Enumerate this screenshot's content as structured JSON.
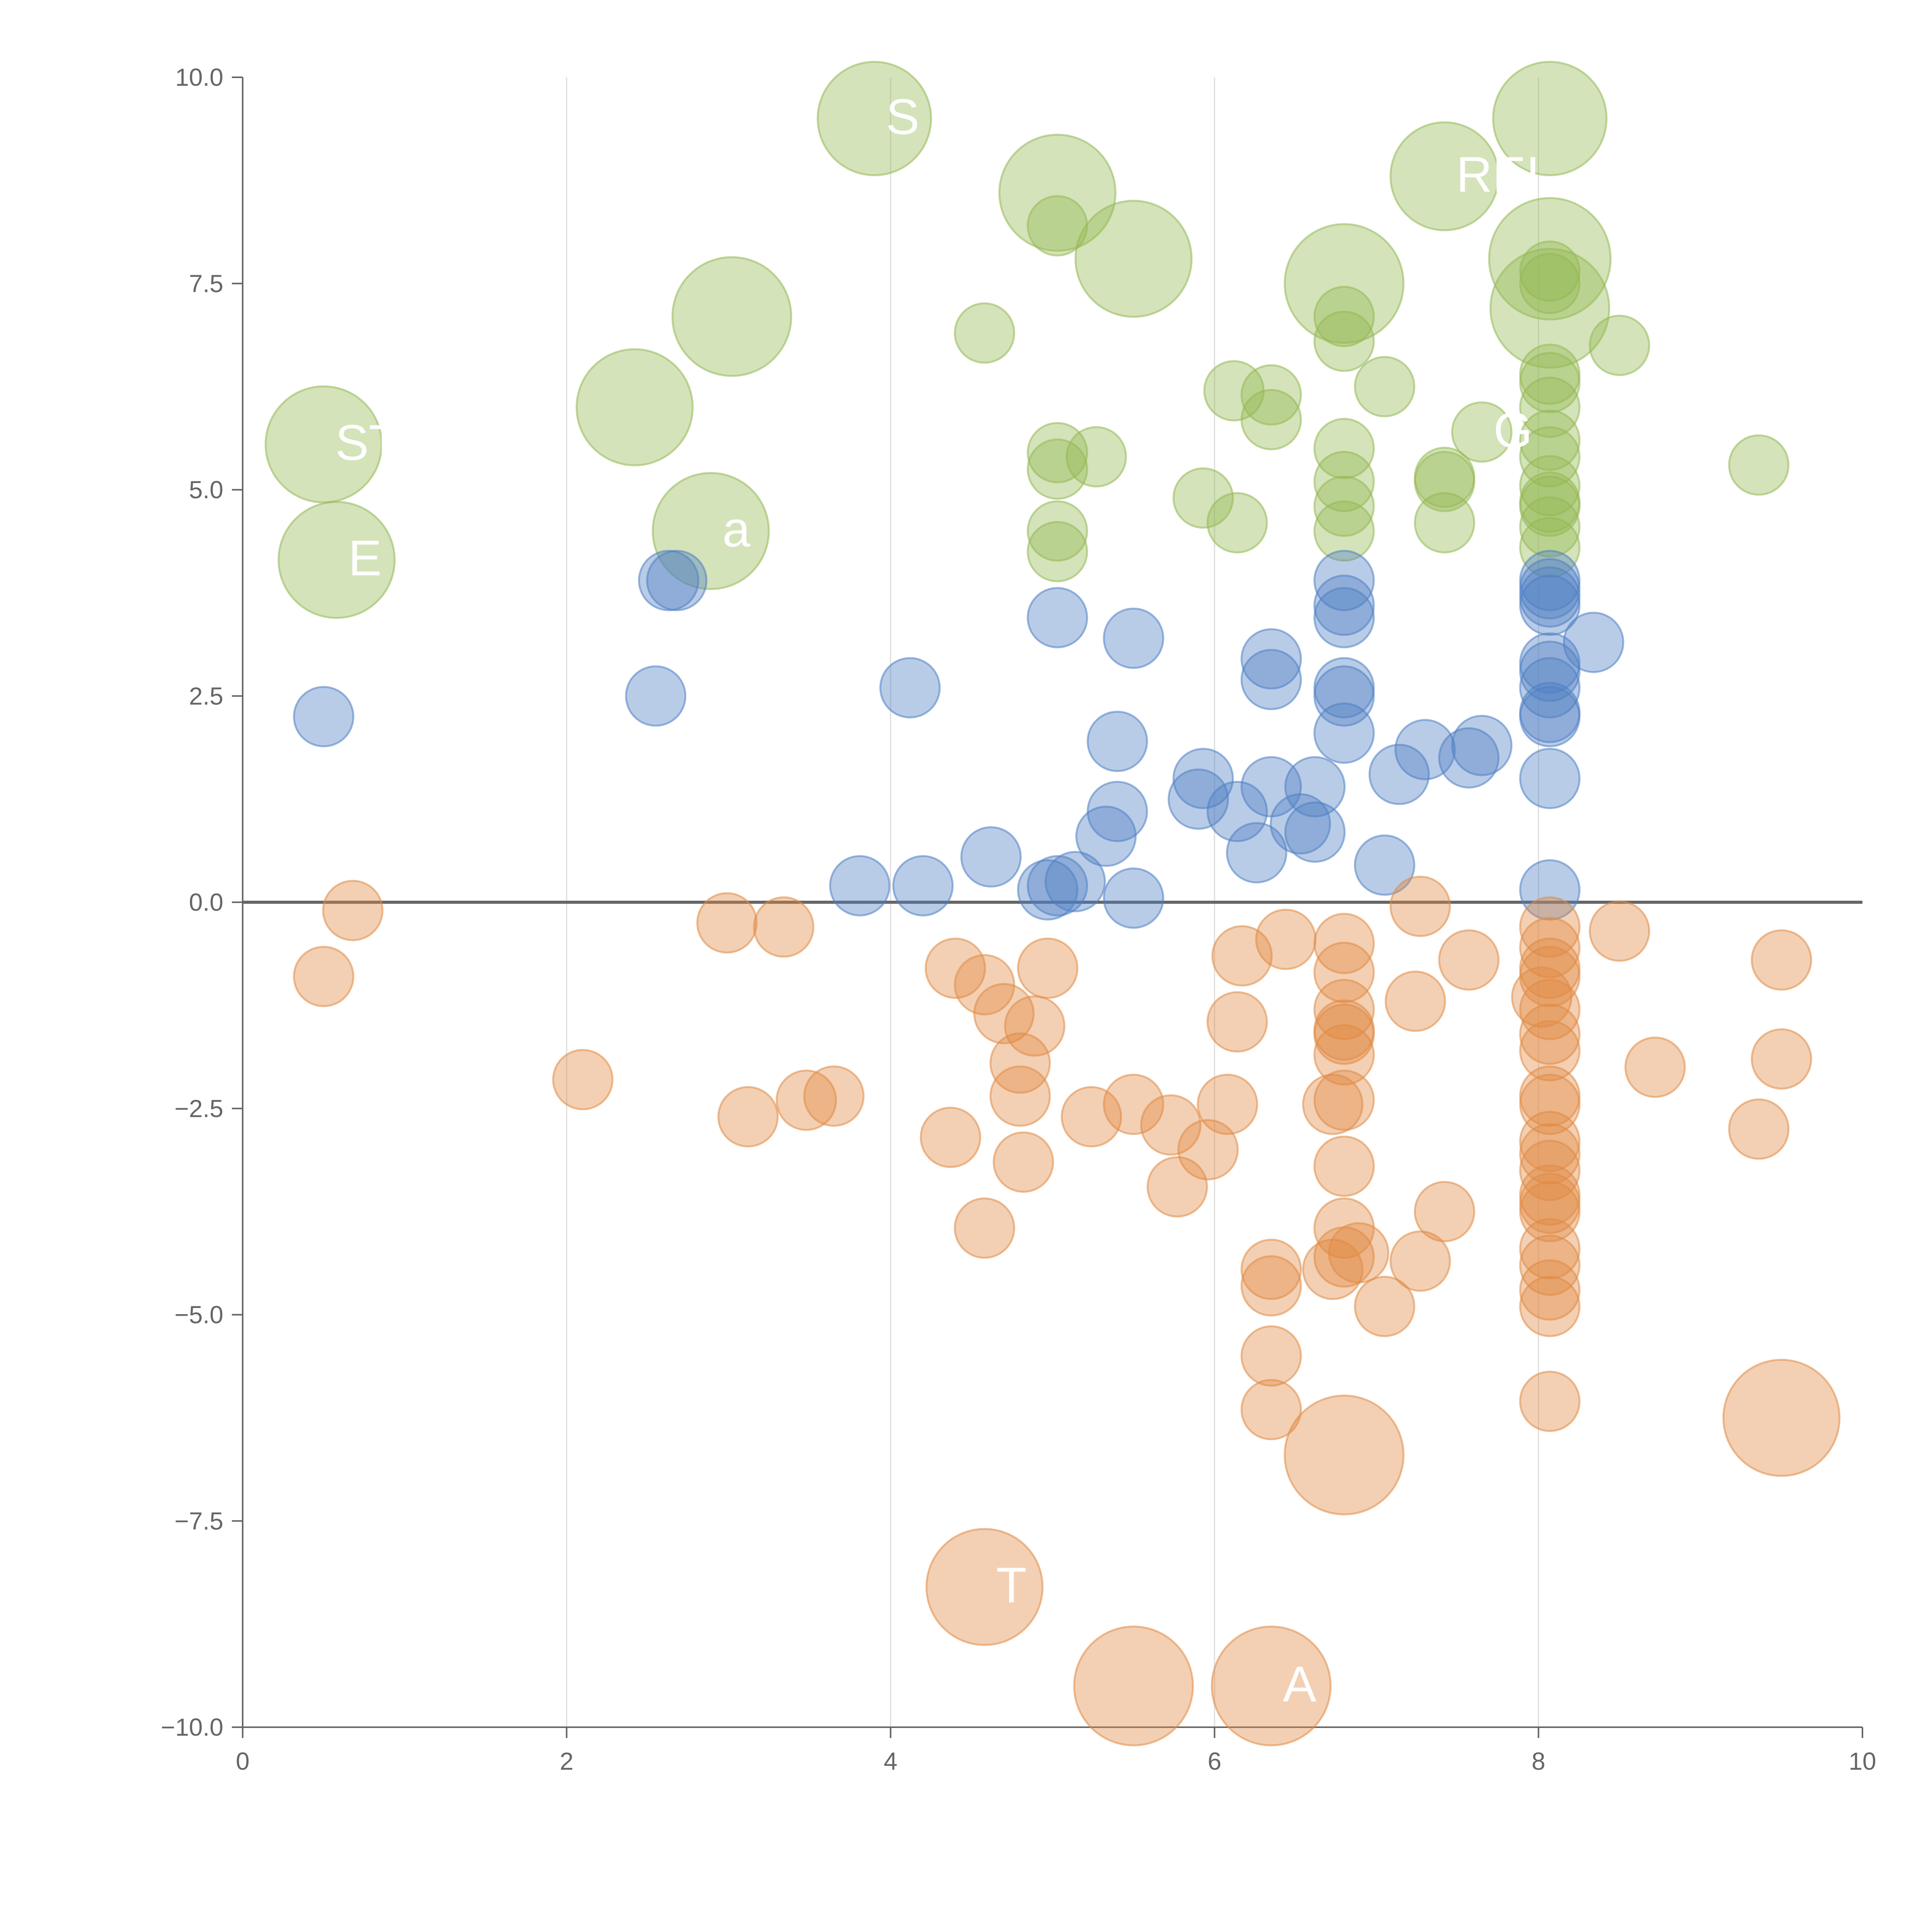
{
  "chart_data": {
    "type": "scatter",
    "subtype": "bubble",
    "title": "",
    "xlabel": "",
    "ylabel": "",
    "xlim": [
      0,
      10
    ],
    "ylim": [
      -10,
      10
    ],
    "grid": "vertical",
    "zero_line": true,
    "x_ticks": [
      0,
      2,
      4,
      6,
      8,
      10
    ],
    "x_tick_labels": [
      "0",
      "2",
      "4",
      "6",
      "8",
      "10"
    ],
    "y_ticks": [
      -10,
      -7.5,
      -5,
      -2.5,
      0,
      2.5,
      5,
      7.5,
      10
    ],
    "y_tick_labels": [
      "−10.0",
      "−7.5",
      "−5.0",
      "−2.5",
      "0.0",
      "2.5",
      "5.0",
      "7.5",
      "10.0"
    ],
    "colors": {
      "positive": "#93b853",
      "neutral": "#4f7fc4",
      "negative": "#e08a43",
      "axis": "#666666",
      "grid": "#dddddd"
    },
    "series": [
      {
        "name": "positive",
        "color": "#93b853",
        "points": [
          {
            "x": 3.9,
            "y": 9.5,
            "r": 4.2
          },
          {
            "x": 8.07,
            "y": 9.5,
            "r": 4.2
          },
          {
            "x": 5.03,
            "y": 8.6,
            "r": 4.3
          },
          {
            "x": 7.42,
            "y": 8.8,
            "r": 4.0
          },
          {
            "x": 5.5,
            "y": 7.8,
            "r": 4.3
          },
          {
            "x": 8.07,
            "y": 7.8,
            "r": 4.5
          },
          {
            "x": 6.8,
            "y": 7.5,
            "r": 4.4
          },
          {
            "x": 8.07,
            "y": 7.2,
            "r": 4.4
          },
          {
            "x": 3.02,
            "y": 7.1,
            "r": 4.4
          },
          {
            "x": 2.42,
            "y": 6.0,
            "r": 4.3
          },
          {
            "x": 0.5,
            "y": 5.55,
            "r": 4.3
          },
          {
            "x": 2.89,
            "y": 4.5,
            "r": 4.3
          },
          {
            "x": 0.58,
            "y": 4.15,
            "r": 4.3
          },
          {
            "x": 5.03,
            "y": 8.2,
            "r": 2.2
          },
          {
            "x": 4.58,
            "y": 6.9,
            "r": 2.2
          },
          {
            "x": 6.8,
            "y": 7.1,
            "r": 2.2
          },
          {
            "x": 6.8,
            "y": 6.8,
            "r": 2.2
          },
          {
            "x": 8.07,
            "y": 7.65,
            "r": 2.2
          },
          {
            "x": 8.07,
            "y": 7.5,
            "r": 2.2
          },
          {
            "x": 8.5,
            "y": 6.75,
            "r": 2.2
          },
          {
            "x": 6.12,
            "y": 6.2,
            "r": 2.2
          },
          {
            "x": 6.35,
            "y": 6.15,
            "r": 2.2
          },
          {
            "x": 6.35,
            "y": 5.85,
            "r": 2.2
          },
          {
            "x": 7.05,
            "y": 6.25,
            "r": 2.2
          },
          {
            "x": 8.07,
            "y": 6.4,
            "r": 2.2
          },
          {
            "x": 8.07,
            "y": 6.3,
            "r": 2.2
          },
          {
            "x": 8.07,
            "y": 6.0,
            "r": 2.2
          },
          {
            "x": 7.65,
            "y": 5.7,
            "r": 2.2
          },
          {
            "x": 8.07,
            "y": 5.6,
            "r": 2.2
          },
          {
            "x": 8.07,
            "y": 5.4,
            "r": 2.2
          },
          {
            "x": 5.03,
            "y": 5.45,
            "r": 2.2
          },
          {
            "x": 5.03,
            "y": 5.25,
            "r": 2.2
          },
          {
            "x": 5.27,
            "y": 5.4,
            "r": 2.2
          },
          {
            "x": 6.8,
            "y": 5.5,
            "r": 2.2
          },
          {
            "x": 6.8,
            "y": 5.1,
            "r": 2.2
          },
          {
            "x": 7.42,
            "y": 5.15,
            "r": 2.2
          },
          {
            "x": 7.42,
            "y": 5.1,
            "r": 2.2
          },
          {
            "x": 9.36,
            "y": 5.3,
            "r": 2.2
          },
          {
            "x": 8.07,
            "y": 5.05,
            "r": 2.2
          },
          {
            "x": 8.07,
            "y": 4.85,
            "r": 2.2
          },
          {
            "x": 5.93,
            "y": 4.9,
            "r": 2.2
          },
          {
            "x": 6.8,
            "y": 4.8,
            "r": 2.2
          },
          {
            "x": 8.07,
            "y": 4.8,
            "r": 2.2
          },
          {
            "x": 6.14,
            "y": 4.6,
            "r": 2.2
          },
          {
            "x": 7.42,
            "y": 4.6,
            "r": 2.2
          },
          {
            "x": 5.03,
            "y": 4.5,
            "r": 2.2
          },
          {
            "x": 6.8,
            "y": 4.5,
            "r": 2.2
          },
          {
            "x": 8.07,
            "y": 4.55,
            "r": 2.2
          },
          {
            "x": 5.03,
            "y": 4.25,
            "r": 2.2
          },
          {
            "x": 8.07,
            "y": 4.3,
            "r": 2.2
          }
        ]
      },
      {
        "name": "neutral",
        "color": "#4f7fc4",
        "points": [
          {
            "x": 2.63,
            "y": 3.9,
            "r": 2.2
          },
          {
            "x": 2.68,
            "y": 3.9,
            "r": 2.2
          },
          {
            "x": 5.03,
            "y": 3.45,
            "r": 2.2
          },
          {
            "x": 5.5,
            "y": 3.2,
            "r": 2.2
          },
          {
            "x": 6.8,
            "y": 3.9,
            "r": 2.2
          },
          {
            "x": 6.8,
            "y": 3.6,
            "r": 2.2
          },
          {
            "x": 6.8,
            "y": 3.45,
            "r": 2.2
          },
          {
            "x": 8.07,
            "y": 3.9,
            "r": 2.2
          },
          {
            "x": 8.07,
            "y": 3.8,
            "r": 2.2
          },
          {
            "x": 8.07,
            "y": 3.7,
            "r": 2.2
          },
          {
            "x": 8.07,
            "y": 3.6,
            "r": 2.2
          },
          {
            "x": 8.34,
            "y": 3.15,
            "r": 2.2
          },
          {
            "x": 6.35,
            "y": 2.95,
            "r": 2.2
          },
          {
            "x": 6.35,
            "y": 2.7,
            "r": 2.2
          },
          {
            "x": 8.07,
            "y": 2.9,
            "r": 2.2
          },
          {
            "x": 8.07,
            "y": 2.8,
            "r": 2.2
          },
          {
            "x": 0.5,
            "y": 2.25,
            "r": 2.2
          },
          {
            "x": 2.55,
            "y": 2.5,
            "r": 2.2
          },
          {
            "x": 4.12,
            "y": 2.6,
            "r": 2.2
          },
          {
            "x": 6.8,
            "y": 2.6,
            "r": 2.2
          },
          {
            "x": 6.8,
            "y": 2.5,
            "r": 2.2
          },
          {
            "x": 8.07,
            "y": 2.6,
            "r": 2.2
          },
          {
            "x": 8.07,
            "y": 2.3,
            "r": 2.2
          },
          {
            "x": 8.07,
            "y": 2.25,
            "r": 2.2
          },
          {
            "x": 6.8,
            "y": 2.05,
            "r": 2.2
          },
          {
            "x": 5.4,
            "y": 1.95,
            "r": 2.2
          },
          {
            "x": 7.3,
            "y": 1.85,
            "r": 2.2
          },
          {
            "x": 7.65,
            "y": 1.9,
            "r": 2.2
          },
          {
            "x": 7.57,
            "y": 1.75,
            "r": 2.2
          },
          {
            "x": 7.14,
            "y": 1.55,
            "r": 2.2
          },
          {
            "x": 8.07,
            "y": 1.5,
            "r": 2.2
          },
          {
            "x": 5.93,
            "y": 1.5,
            "r": 2.2
          },
          {
            "x": 5.9,
            "y": 1.25,
            "r": 2.2
          },
          {
            "x": 6.35,
            "y": 1.4,
            "r": 2.2
          },
          {
            "x": 6.62,
            "y": 1.4,
            "r": 2.2
          },
          {
            "x": 5.4,
            "y": 1.1,
            "r": 2.2
          },
          {
            "x": 6.14,
            "y": 1.1,
            "r": 2.2
          },
          {
            "x": 6.53,
            "y": 0.95,
            "r": 2.2
          },
          {
            "x": 6.62,
            "y": 0.85,
            "r": 2.2
          },
          {
            "x": 5.33,
            "y": 0.8,
            "r": 2.2
          },
          {
            "x": 6.26,
            "y": 0.6,
            "r": 2.2
          },
          {
            "x": 4.62,
            "y": 0.55,
            "r": 2.2
          },
          {
            "x": 7.05,
            "y": 0.45,
            "r": 2.2
          },
          {
            "x": 3.81,
            "y": 0.2,
            "r": 2.2
          },
          {
            "x": 4.2,
            "y": 0.2,
            "r": 2.2
          },
          {
            "x": 4.97,
            "y": 0.15,
            "r": 2.2
          },
          {
            "x": 5.03,
            "y": 0.2,
            "r": 2.2
          },
          {
            "x": 5.14,
            "y": 0.25,
            "r": 2.2
          },
          {
            "x": 5.5,
            "y": 0.05,
            "r": 2.2
          },
          {
            "x": 8.07,
            "y": 0.15,
            "r": 2.2
          }
        ]
      },
      {
        "name": "negative",
        "color": "#e08a43",
        "points": [
          {
            "x": 0.68,
            "y": -0.1,
            "r": 2.2
          },
          {
            "x": 7.27,
            "y": -0.05,
            "r": 2.2
          },
          {
            "x": 2.99,
            "y": -0.25,
            "r": 2.2
          },
          {
            "x": 3.34,
            "y": -0.3,
            "r": 2.2
          },
          {
            "x": 8.5,
            "y": -0.35,
            "r": 2.2
          },
          {
            "x": 6.44,
            "y": -0.45,
            "r": 2.2
          },
          {
            "x": 6.8,
            "y": -0.5,
            "r": 2.2
          },
          {
            "x": 8.07,
            "y": -0.3,
            "r": 2.2
          },
          {
            "x": 8.07,
            "y": -0.55,
            "r": 2.2
          },
          {
            "x": 6.17,
            "y": -0.65,
            "r": 2.2
          },
          {
            "x": 9.5,
            "y": -0.7,
            "r": 2.2
          },
          {
            "x": 7.57,
            "y": -0.7,
            "r": 2.2
          },
          {
            "x": 4.4,
            "y": -0.8,
            "r": 2.2
          },
          {
            "x": 4.97,
            "y": -0.8,
            "r": 2.2
          },
          {
            "x": 8.07,
            "y": -0.8,
            "r": 2.2
          },
          {
            "x": 8.07,
            "y": -0.9,
            "r": 2.2
          },
          {
            "x": 0.5,
            "y": -0.9,
            "r": 2.2
          },
          {
            "x": 6.8,
            "y": -0.85,
            "r": 2.2
          },
          {
            "x": 4.58,
            "y": -1.0,
            "r": 2.2
          },
          {
            "x": 8.02,
            "y": -1.15,
            "r": 2.2
          },
          {
            "x": 7.24,
            "y": -1.2,
            "r": 2.2
          },
          {
            "x": 6.8,
            "y": -1.3,
            "r": 2.2
          },
          {
            "x": 8.07,
            "y": -1.3,
            "r": 2.2
          },
          {
            "x": 4.7,
            "y": -1.35,
            "r": 2.2
          },
          {
            "x": 6.14,
            "y": -1.45,
            "r": 2.2
          },
          {
            "x": 4.89,
            "y": -1.5,
            "r": 2.2
          },
          {
            "x": 6.8,
            "y": -1.55,
            "r": 2.2
          },
          {
            "x": 6.8,
            "y": -1.6,
            "r": 2.2
          },
          {
            "x": 8.07,
            "y": -1.6,
            "r": 2.2
          },
          {
            "x": 6.8,
            "y": -1.85,
            "r": 2.2
          },
          {
            "x": 8.07,
            "y": -1.8,
            "r": 2.2
          },
          {
            "x": 9.5,
            "y": -1.9,
            "r": 2.2
          },
          {
            "x": 4.8,
            "y": -1.95,
            "r": 2.2
          },
          {
            "x": 8.72,
            "y": -2.0,
            "r": 2.2
          },
          {
            "x": 2.1,
            "y": -2.15,
            "r": 2.2
          },
          {
            "x": 3.65,
            "y": -2.35,
            "r": 2.2
          },
          {
            "x": 3.48,
            "y": -2.4,
            "r": 2.2
          },
          {
            "x": 4.8,
            "y": -2.35,
            "r": 2.2
          },
          {
            "x": 6.8,
            "y": -2.4,
            "r": 2.2
          },
          {
            "x": 6.73,
            "y": -2.45,
            "r": 2.2
          },
          {
            "x": 8.07,
            "y": -2.35,
            "r": 2.2
          },
          {
            "x": 8.07,
            "y": -2.45,
            "r": 2.2
          },
          {
            "x": 5.5,
            "y": -2.45,
            "r": 2.2
          },
          {
            "x": 6.08,
            "y": -2.45,
            "r": 2.2
          },
          {
            "x": 3.12,
            "y": -2.6,
            "r": 2.2
          },
          {
            "x": 5.24,
            "y": -2.6,
            "r": 2.2
          },
          {
            "x": 5.73,
            "y": -2.7,
            "r": 2.2
          },
          {
            "x": 9.36,
            "y": -2.75,
            "r": 2.2
          },
          {
            "x": 4.37,
            "y": -2.85,
            "r": 2.2
          },
          {
            "x": 8.07,
            "y": -2.9,
            "r": 2.2
          },
          {
            "x": 5.96,
            "y": -3.0,
            "r": 2.2
          },
          {
            "x": 8.07,
            "y": -3.05,
            "r": 2.2
          },
          {
            "x": 4.82,
            "y": -3.15,
            "r": 2.2
          },
          {
            "x": 6.8,
            "y": -3.2,
            "r": 2.2
          },
          {
            "x": 8.07,
            "y": -3.25,
            "r": 2.2
          },
          {
            "x": 5.77,
            "y": -3.45,
            "r": 2.2
          },
          {
            "x": 8.07,
            "y": -3.55,
            "r": 2.2
          },
          {
            "x": 8.07,
            "y": -3.65,
            "r": 2.2
          },
          {
            "x": 7.42,
            "y": -3.75,
            "r": 2.2
          },
          {
            "x": 8.07,
            "y": -3.75,
            "r": 2.2
          },
          {
            "x": 4.58,
            "y": -3.95,
            "r": 2.2
          },
          {
            "x": 6.8,
            "y": -3.95,
            "r": 2.2
          },
          {
            "x": 8.07,
            "y": -4.2,
            "r": 2.2
          },
          {
            "x": 6.89,
            "y": -4.25,
            "r": 2.2
          },
          {
            "x": 6.8,
            "y": -4.3,
            "r": 2.2
          },
          {
            "x": 7.27,
            "y": -4.35,
            "r": 2.2
          },
          {
            "x": 8.07,
            "y": -4.4,
            "r": 2.2
          },
          {
            "x": 6.35,
            "y": -4.45,
            "r": 2.2
          },
          {
            "x": 6.73,
            "y": -4.45,
            "r": 2.2
          },
          {
            "x": 6.35,
            "y": -4.65,
            "r": 2.2
          },
          {
            "x": 8.07,
            "y": -4.7,
            "r": 2.2
          },
          {
            "x": 7.05,
            "y": -4.9,
            "r": 2.2
          },
          {
            "x": 8.07,
            "y": -4.9,
            "r": 2.2
          },
          {
            "x": 6.35,
            "y": -5.5,
            "r": 2.2
          },
          {
            "x": 8.07,
            "y": -6.05,
            "r": 2.2
          },
          {
            "x": 6.35,
            "y": -6.15,
            "r": 2.2
          },
          {
            "x": 9.5,
            "y": -6.25,
            "r": 4.3
          },
          {
            "x": 6.8,
            "y": -6.7,
            "r": 4.4
          },
          {
            "x": 4.58,
            "y": -8.3,
            "r": 4.3
          },
          {
            "x": 5.5,
            "y": -9.5,
            "r": 4.4
          },
          {
            "x": 6.35,
            "y": -9.5,
            "r": 4.4
          }
        ]
      }
    ],
    "text_labels": [
      {
        "text": "S",
        "x": 3.9,
        "y": 9.5,
        "series": "positive"
      },
      {
        "text": "REI",
        "x": 7.42,
        "y": 8.8,
        "series": "positive"
      },
      {
        "text": "ST",
        "x": 0.5,
        "y": 5.55,
        "series": "positive"
      },
      {
        "text": "G",
        "x": 7.65,
        "y": 5.7,
        "series": "positive"
      },
      {
        "text": "E",
        "x": 0.58,
        "y": 4.15,
        "series": "positive"
      },
      {
        "text": "a",
        "x": 2.89,
        "y": 4.5,
        "series": "positive"
      },
      {
        "text": "T",
        "x": 4.58,
        "y": -8.3,
        "series": "negative"
      },
      {
        "text": "A",
        "x": 6.35,
        "y": -9.5,
        "series": "negative"
      }
    ]
  }
}
